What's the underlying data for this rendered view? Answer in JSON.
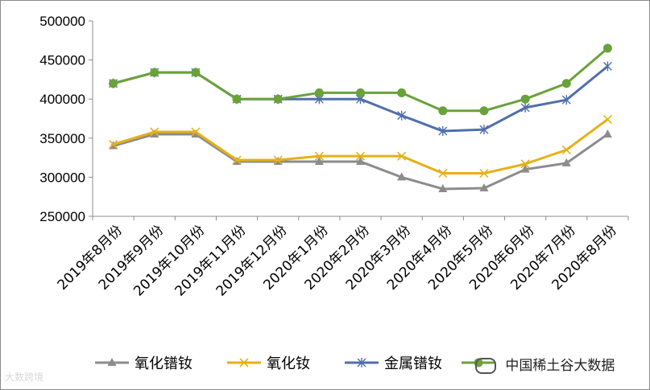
{
  "chart_data": {
    "type": "line",
    "title": "",
    "xlabel": "",
    "ylabel": "",
    "ylim": [
      250000,
      500000
    ],
    "yticks": [
      250000,
      300000,
      350000,
      400000,
      450000,
      500000
    ],
    "ytick_labels": [
      "250000",
      "300000",
      "350000",
      "400000",
      "450000",
      "500000"
    ],
    "grid": false,
    "legend_position": "bottom",
    "categories": [
      "2019年8月份",
      "2019年9月份",
      "2019年10月份",
      "2019年11月份",
      "2019年12月份",
      "2020年1月份",
      "2020年2月份",
      "2020年3月份",
      "2020年4月份",
      "2020年5月份",
      "2020年6月份",
      "2020年7月份",
      "2020年8月份"
    ],
    "series": [
      {
        "name": "氧化镨钕",
        "color": "#8c8c8c",
        "marker": "triangle",
        "values": [
          340000,
          355000,
          355000,
          320000,
          320000,
          320000,
          320000,
          300000,
          285000,
          286000,
          310000,
          318000,
          355000
        ]
      },
      {
        "name": "氧化钕",
        "color": "#e6b117",
        "marker": "x",
        "values": [
          342000,
          358000,
          358000,
          322000,
          322000,
          327000,
          327000,
          327000,
          305000,
          305000,
          317000,
          335000,
          374000
        ]
      },
      {
        "name": "金属镨钕",
        "color": "#4f6fad",
        "marker": "star",
        "values": [
          420000,
          434000,
          434000,
          400000,
          400000,
          400000,
          400000,
          379000,
          359000,
          361000,
          389000,
          399000,
          442000
        ]
      },
      {
        "name": "",
        "color": "#6aa23a",
        "marker": "circle",
        "values": [
          420000,
          434000,
          434000,
          400000,
          400000,
          408000,
          408000,
          408000,
          385000,
          385000,
          400000,
          420000,
          465000
        ]
      }
    ]
  },
  "watermarks": {
    "left": "大数跨境",
    "right": "中国稀土谷大数据"
  }
}
